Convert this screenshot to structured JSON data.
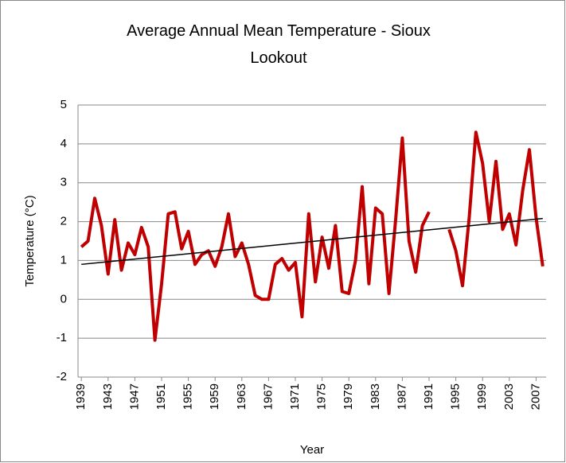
{
  "chart_data": {
    "type": "line",
    "title": "Average Annual Mean Temperature - Sioux Lookout",
    "xlabel": "Year",
    "ylabel": "Temperature (°C)",
    "x": [
      1939,
      1940,
      1941,
      1942,
      1943,
      1944,
      1945,
      1946,
      1947,
      1948,
      1949,
      1950,
      1951,
      1952,
      1953,
      1954,
      1955,
      1956,
      1957,
      1958,
      1959,
      1960,
      1961,
      1962,
      1963,
      1964,
      1965,
      1966,
      1967,
      1968,
      1969,
      1970,
      1971,
      1972,
      1973,
      1974,
      1975,
      1976,
      1977,
      1978,
      1979,
      1980,
      1981,
      1982,
      1983,
      1984,
      1985,
      1986,
      1987,
      1988,
      1989,
      1990,
      1991,
      1992,
      1993,
      1994,
      1995,
      1996,
      1997,
      1998,
      1999,
      2000,
      2001,
      2002,
      2003,
      2004,
      2005,
      2006,
      2007,
      2008
    ],
    "series": [
      {
        "color": "#c00000",
        "values": [
          1.35,
          1.5,
          2.6,
          1.9,
          0.65,
          2.05,
          0.75,
          1.45,
          1.15,
          1.85,
          1.35,
          -1.05,
          0.4,
          2.2,
          2.25,
          1.3,
          1.75,
          0.9,
          1.15,
          1.25,
          0.85,
          1.35,
          2.2,
          1.1,
          1.45,
          0.9,
          0.1,
          0.0,
          0.0,
          0.9,
          1.05,
          0.75,
          0.95,
          -0.45,
          2.2,
          0.45,
          1.6,
          0.8,
          1.9,
          0.2,
          0.15,
          1.0,
          2.9,
          0.4,
          2.35,
          2.2,
          0.15,
          2.05,
          4.15,
          1.5,
          0.7,
          1.9,
          2.25,
          null,
          null,
          1.8,
          1.25,
          0.35,
          2.1,
          4.3,
          3.5,
          2.0,
          3.55,
          1.8,
          2.2,
          1.4,
          2.8,
          3.85,
          2.1,
          0.85
        ]
      }
    ],
    "trendline": {
      "color": "#000000",
      "x": [
        1939,
        2008
      ],
      "values": [
        0.9,
        2.08
      ]
    },
    "xlim": [
      1938.5,
      2008.5
    ],
    "xticks": [
      1939,
      1943,
      1947,
      1951,
      1955,
      1959,
      1963,
      1967,
      1971,
      1975,
      1979,
      1983,
      1987,
      1991,
      1995,
      1999,
      2003,
      2007
    ],
    "ylim": [
      -2,
      5
    ],
    "yticks": [
      -2,
      -1,
      0,
      1,
      2,
      3,
      4,
      5
    ],
    "grid": true
  }
}
